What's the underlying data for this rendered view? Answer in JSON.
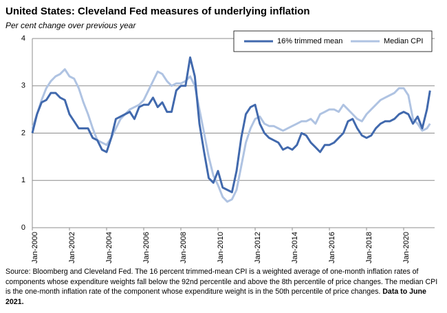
{
  "chart_data": {
    "type": "line",
    "title": "United States: Cleveland Fed measures of underlying inflation",
    "subtitle": "Per cent change over previous year",
    "source": "Source: Bloomberg and Cleveland Fed. The 16 percent trimmed-mean CPI is a weighted average of one-month inflation rates of components whose expenditure weights fall below the 92nd percentile and above the 8th percentile of price changes. The median CPI is the one-month inflation rate of the component whose expenditure weight is in the 50th percentile of price changes.",
    "source_note": "Data to June 2021.",
    "x": [
      "Jan-2000",
      "Apr-2000",
      "Jul-2000",
      "Oct-2000",
      "Jan-2001",
      "Apr-2001",
      "Jul-2001",
      "Oct-2001",
      "Jan-2002",
      "Apr-2002",
      "Jul-2002",
      "Oct-2002",
      "Jan-2003",
      "Apr-2003",
      "Jul-2003",
      "Oct-2003",
      "Jan-2004",
      "Apr-2004",
      "Jul-2004",
      "Oct-2004",
      "Jan-2005",
      "Apr-2005",
      "Jul-2005",
      "Oct-2005",
      "Jan-2006",
      "Apr-2006",
      "Jul-2006",
      "Oct-2006",
      "Jan-2007",
      "Apr-2007",
      "Jul-2007",
      "Oct-2007",
      "Jan-2008",
      "Apr-2008",
      "Jul-2008",
      "Oct-2008",
      "Jan-2009",
      "Apr-2009",
      "Jul-2009",
      "Oct-2009",
      "Jan-2010",
      "Apr-2010",
      "Jul-2010",
      "Oct-2010",
      "Jan-2011",
      "Apr-2011",
      "Jul-2011",
      "Oct-2011",
      "Jan-2012",
      "Apr-2012",
      "Jul-2012",
      "Oct-2012",
      "Jan-2013",
      "Apr-2013",
      "Jul-2013",
      "Oct-2013",
      "Jan-2014",
      "Apr-2014",
      "Jul-2014",
      "Oct-2014",
      "Jan-2015",
      "Apr-2015",
      "Jul-2015",
      "Oct-2015",
      "Jan-2016",
      "Apr-2016",
      "Jul-2016",
      "Oct-2016",
      "Jan-2017",
      "Apr-2017",
      "Jul-2017",
      "Oct-2017",
      "Jan-2018",
      "Apr-2018",
      "Jul-2018",
      "Oct-2018",
      "Jan-2019",
      "Apr-2019",
      "Jul-2019",
      "Oct-2019",
      "Jan-2020",
      "Apr-2020",
      "Jul-2020",
      "Oct-2020",
      "Jan-2021",
      "Apr-2021",
      "Jun-2021"
    ],
    "xticks": [
      "Jan-2000",
      "Jan-2002",
      "Jan-2004",
      "Jan-2006",
      "Jan-2008",
      "Jan-2010",
      "Jan-2012",
      "Jan-2014",
      "Jan-2016",
      "Jan-2018",
      "Jan-2020"
    ],
    "series": [
      {
        "name": "16% trimmed mean",
        "color": "#4169ad",
        "values": [
          2.0,
          2.4,
          2.65,
          2.7,
          2.85,
          2.85,
          2.75,
          2.7,
          2.4,
          2.25,
          2.1,
          2.1,
          2.1,
          1.9,
          1.85,
          1.65,
          1.6,
          1.9,
          2.3,
          2.35,
          2.4,
          2.45,
          2.3,
          2.55,
          2.6,
          2.6,
          2.75,
          2.55,
          2.65,
          2.45,
          2.45,
          2.9,
          3.0,
          3.0,
          3.6,
          3.2,
          2.2,
          1.6,
          1.05,
          0.95,
          1.2,
          0.85,
          0.8,
          0.75,
          1.2,
          1.9,
          2.4,
          2.55,
          2.6,
          2.2,
          2.0,
          1.9,
          1.85,
          1.8,
          1.65,
          1.7,
          1.65,
          1.75,
          2.0,
          1.95,
          1.8,
          1.7,
          1.6,
          1.75,
          1.75,
          1.8,
          1.9,
          2.0,
          2.25,
          2.3,
          2.1,
          1.95,
          1.9,
          1.95,
          2.1,
          2.2,
          2.25,
          2.25,
          2.3,
          2.4,
          2.45,
          2.4,
          2.2,
          2.35,
          2.1,
          2.5,
          2.9
        ]
      },
      {
        "name": "Median CPI",
        "color": "#afc3e2",
        "values": [
          2.1,
          2.4,
          2.7,
          2.95,
          3.1,
          3.2,
          3.25,
          3.35,
          3.2,
          3.15,
          2.95,
          2.65,
          2.4,
          2.1,
          1.85,
          1.8,
          1.75,
          1.9,
          2.1,
          2.3,
          2.4,
          2.5,
          2.55,
          2.6,
          2.7,
          2.9,
          3.1,
          3.3,
          3.25,
          3.1,
          3.0,
          3.05,
          3.05,
          3.1,
          3.2,
          3.0,
          2.5,
          2.0,
          1.5,
          1.1,
          0.9,
          0.65,
          0.55,
          0.6,
          0.8,
          1.3,
          1.8,
          2.1,
          2.3,
          2.35,
          2.2,
          2.15,
          2.15,
          2.1,
          2.05,
          2.1,
          2.15,
          2.2,
          2.25,
          2.25,
          2.3,
          2.2,
          2.4,
          2.45,
          2.5,
          2.5,
          2.45,
          2.6,
          2.5,
          2.4,
          2.3,
          2.25,
          2.4,
          2.5,
          2.6,
          2.7,
          2.75,
          2.8,
          2.85,
          2.95,
          2.95,
          2.8,
          2.3,
          2.2,
          2.05,
          2.1,
          2.2
        ]
      }
    ],
    "ylim": [
      0,
      4
    ],
    "yticks": [
      0,
      1,
      2,
      3,
      4
    ],
    "grid": true,
    "legend": "upper right"
  }
}
